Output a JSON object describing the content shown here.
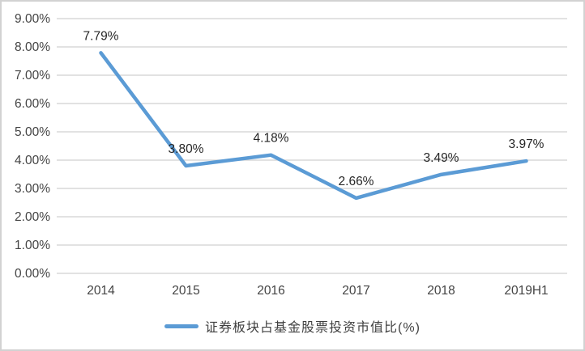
{
  "chart_data": {
    "type": "line",
    "categories": [
      "2014",
      "2015",
      "2016",
      "2017",
      "2018",
      "2019H1"
    ],
    "series": [
      {
        "name": "证券板块占基金股票投资市值比(%)",
        "values": [
          7.79,
          3.8,
          4.18,
          2.66,
          3.49,
          3.97
        ]
      }
    ],
    "data_labels": [
      "7.79%",
      "3.80%",
      "4.18%",
      "2.66%",
      "3.49%",
      "3.97%"
    ],
    "y_ticks": [
      "9.00%",
      "8.00%",
      "7.00%",
      "6.00%",
      "5.00%",
      "4.00%",
      "3.00%",
      "2.00%",
      "1.00%",
      "0.00%"
    ],
    "ylim": [
      0,
      9
    ],
    "title": "",
    "xlabel": "",
    "ylabel": "",
    "grid": "horizontal",
    "legend_position": "bottom-center",
    "colors": {
      "line": "#5B9BD5",
      "gridline": "#D9D9D9",
      "axis_text": "#444444",
      "data_label_text": "#262626",
      "frame_border": "#D2D2D2"
    }
  }
}
